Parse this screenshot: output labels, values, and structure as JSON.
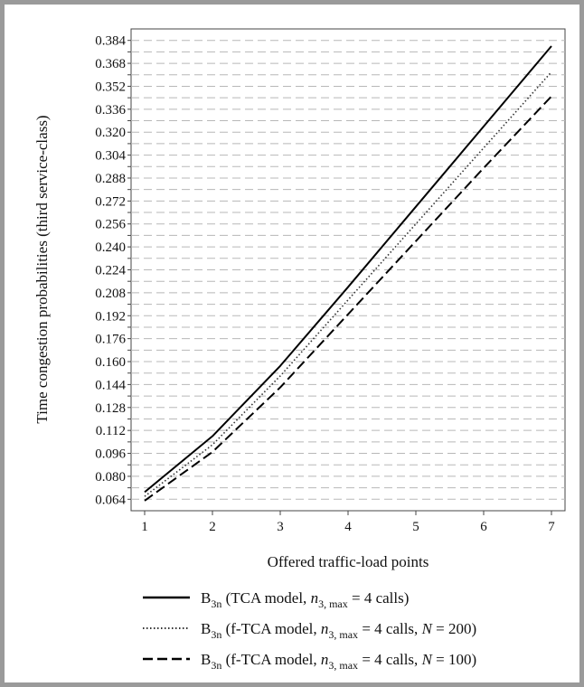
{
  "chart_data": {
    "type": "line",
    "title": "",
    "xlabel": "Offered traffic-load points",
    "ylabel": "Time congestion probabilities (third service-class)",
    "x": [
      1,
      2,
      3,
      4,
      5,
      6,
      7
    ],
    "xlim": [
      0.8,
      7.2
    ],
    "ylim": [
      0.056,
      0.392
    ],
    "y_ticks": [
      "0.064",
      "0.080",
      "0.096",
      "0.112",
      "0.128",
      "0.144",
      "0.160",
      "0.176",
      "0.192",
      "0.208",
      "0.224",
      "0.240",
      "0.256",
      "0.272",
      "0.288",
      "0.304",
      "0.320",
      "0.336",
      "0.352",
      "0.368",
      "0.384"
    ],
    "x_ticks": [
      "1",
      "2",
      "3",
      "4",
      "5",
      "6",
      "7"
    ],
    "grid": "horizontal dashed",
    "legend_position": "bottom",
    "series": [
      {
        "style": "solid",
        "color": "#000000",
        "values": [
          0.069,
          0.108,
          0.157,
          0.212,
          0.268,
          0.324,
          0.38
        ],
        "legend": {
          "prefix": "B",
          "sub": "3n",
          "model": " (TCA model, ",
          "n_var": "n",
          "n_sub": "3, max",
          "tail": " = 4 calls)"
        }
      },
      {
        "style": "dotted",
        "color": "#333333",
        "values": [
          0.066,
          0.102,
          0.15,
          0.203,
          0.256,
          0.309,
          0.362
        ],
        "legend": {
          "prefix": "B",
          "sub": "3n",
          "model": " (f-TCA model, ",
          "n_var": "n",
          "n_sub": "3, max",
          "tail": " = 4 calls, ",
          "N_var": "N",
          "N_tail": " = 200)"
        }
      },
      {
        "style": "dashed",
        "color": "#000000",
        "values": [
          0.063,
          0.097,
          0.142,
          0.193,
          0.244,
          0.295,
          0.345
        ],
        "legend": {
          "prefix": "B",
          "sub": "3n",
          "model": " (f-TCA model, ",
          "n_var": "n",
          "n_sub": "3, max",
          "tail": " = 4 calls, ",
          "N_var": "N",
          "N_tail": " = 100)"
        }
      }
    ]
  }
}
